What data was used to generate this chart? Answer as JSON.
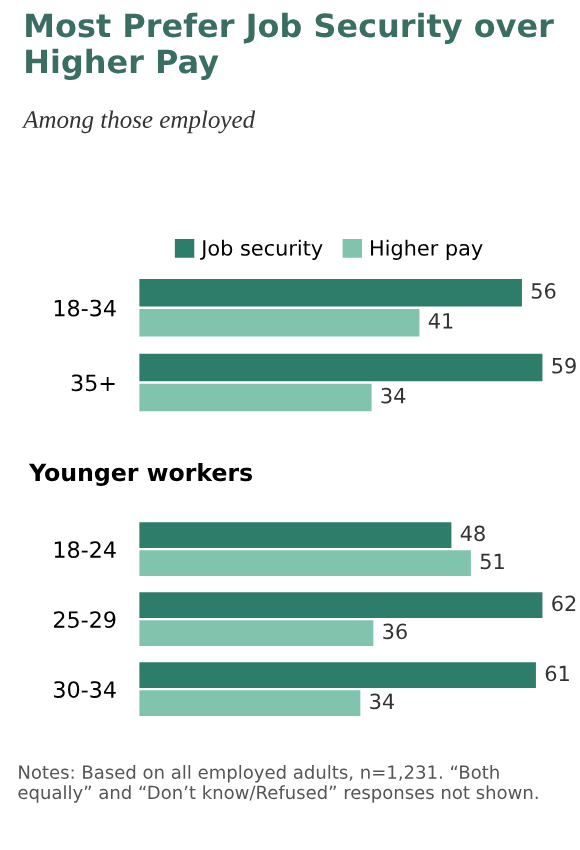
{
  "chart_data": [
    {
      "type": "bar",
      "title": "Most Prefer Job Security over Higher Pay",
      "subtitle": "Among those employed",
      "orientation": "horizontal",
      "categories": [
        "18-34",
        "35+"
      ],
      "series": [
        {
          "name": "Job security",
          "color": "#2e7d6b",
          "values": [
            56,
            59
          ]
        },
        {
          "name": "Higher pay",
          "color": "#80c4ae",
          "values": [
            41,
            34
          ]
        }
      ],
      "tick_labels": "y",
      "data_labels": true,
      "legend": "top"
    },
    {
      "type": "bar",
      "title": "Younger workers",
      "orientation": "horizontal",
      "categories": [
        "18-24",
        "25-29",
        "30-34"
      ],
      "series": [
        {
          "color": "#2e7d6b",
          "values": [
            48,
            62,
            61
          ]
        },
        {
          "color": "#80c4ae",
          "values": [
            51,
            36,
            34
          ]
        }
      ],
      "tick_labels": "y",
      "data_labels": true,
      "annotations": [
        "Notes: Based on all employed adults, n=1,231. “Both equally” and “Don’t know/Refused” responses not shown."
      ]
    }
  ]
}
